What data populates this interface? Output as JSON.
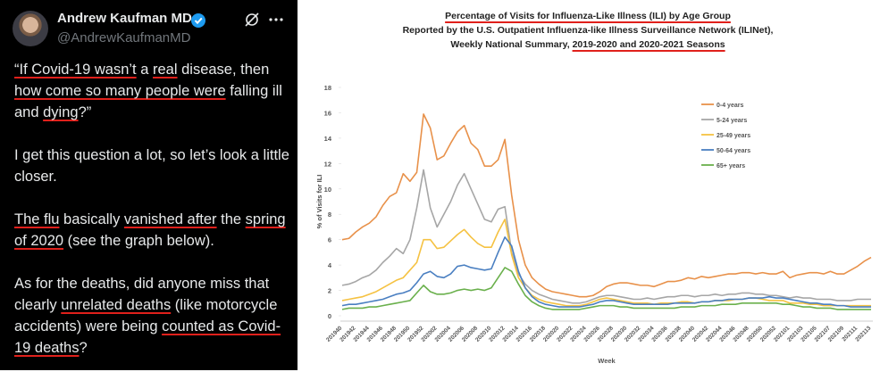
{
  "tweet": {
    "name": "Andrew Kaufman MD",
    "handle": "@AndrewKaufmanMD",
    "paragraphs": [
      [
        {
          "text": "“If Covid-19 wasn’t",
          "underline": true
        },
        " a ",
        {
          "text": "real",
          "underline": true
        },
        " disease, then ",
        {
          "text": "how come so many people were",
          "underline": true
        },
        " falling ill and ",
        {
          "text": "dying",
          "underline": true
        },
        "?”"
      ],
      [
        "I get this question a lot, so let’s look a little closer."
      ],
      [
        {
          "text": "The flu",
          "underline": true
        },
        " basically ",
        {
          "text": "vanished after",
          "underline": true
        },
        " the ",
        {
          "text": "spring of 2020",
          "underline": true
        },
        " (see the graph below)."
      ],
      [
        "As for the deaths, did anyone miss that clearly ",
        {
          "text": "unrelated deaths",
          "underline": true
        },
        " (like motorcycle accidents) were being ",
        {
          "text": "counted as Covid-19 deaths",
          "underline": true
        },
        "?"
      ]
    ]
  },
  "chart_data": {
    "type": "line",
    "title": [
      [
        {
          "text": "Percentage of Visits for Influenza-Like Illness (ILI) by Age Group",
          "underline": true
        }
      ],
      [
        "Reported by the U.S. Outpatient Influenza-like Illness Surveillance Network (ILINet),"
      ],
      [
        "Weekly National Summary, ",
        {
          "text": "2019-2020 and 2020-2021 Seasons",
          "underline": true
        }
      ]
    ],
    "x_label": "Week",
    "y_label": "% of Visits for ILI",
    "ylim": [
      0,
      18
    ],
    "yticks": [
      0,
      2,
      4,
      6,
      8,
      10,
      12,
      14,
      16,
      18
    ],
    "grid": false,
    "legend": "upper right",
    "categories": [
      "201940",
      null,
      "201942",
      null,
      "201944",
      null,
      "201946",
      null,
      "201948",
      null,
      "201950",
      null,
      "201952",
      null,
      "202002",
      null,
      "202004",
      null,
      "202006",
      null,
      "202008",
      null,
      "202010",
      null,
      "202012",
      null,
      "202014",
      null,
      "202016",
      null,
      "202018",
      null,
      "202020",
      null,
      "202022",
      null,
      "202024",
      null,
      "202026",
      null,
      "202028",
      null,
      "202030",
      null,
      "202032",
      null,
      "202034",
      null,
      "202036",
      null,
      "202038",
      null,
      "202040",
      null,
      "202042",
      null,
      "202044",
      null,
      "202046",
      null,
      "202048",
      null,
      "202050",
      null,
      "202052",
      null,
      "202101",
      null,
      "202103",
      null,
      "202105",
      null,
      "202107",
      null,
      "202109",
      null,
      "202111",
      null,
      "202113"
    ],
    "series": [
      {
        "name": "0-4 years",
        "color": "#e8914a",
        "values": [
          6.0,
          6.1,
          6.6,
          7.0,
          7.3,
          7.8,
          8.7,
          9.4,
          9.7,
          11.2,
          10.6,
          11.3,
          15.9,
          14.8,
          12.3,
          12.6,
          13.6,
          14.5,
          15.0,
          13.6,
          13.1,
          11.8,
          11.8,
          12.3,
          13.9,
          9.5,
          6.0,
          4.0,
          3.0,
          2.5,
          2.1,
          1.9,
          1.8,
          1.7,
          1.6,
          1.5,
          1.5,
          1.6,
          1.9,
          2.3,
          2.5,
          2.6,
          2.6,
          2.5,
          2.4,
          2.4,
          2.3,
          2.5,
          2.7,
          2.7,
          2.8,
          3.0,
          2.9,
          3.1,
          3.0,
          3.1,
          3.2,
          3.3,
          3.3,
          3.4,
          3.4,
          3.3,
          3.4,
          3.3,
          3.3,
          3.5,
          3.0,
          3.2,
          3.3,
          3.4,
          3.4,
          3.3,
          3.5,
          3.3,
          3.3,
          3.6,
          3.9,
          4.3,
          4.6
        ]
      },
      {
        "name": "5-24 years",
        "color": "#a6a6a6",
        "values": [
          2.4,
          2.5,
          2.7,
          3.0,
          3.2,
          3.6,
          4.2,
          4.7,
          5.3,
          4.9,
          6.0,
          8.5,
          11.5,
          8.5,
          7.0,
          8.0,
          9.0,
          10.3,
          11.2,
          10.0,
          8.8,
          7.6,
          7.4,
          8.4,
          8.6,
          5.0,
          3.3,
          2.5,
          2.0,
          1.7,
          1.5,
          1.3,
          1.2,
          1.1,
          1.0,
          1.0,
          1.1,
          1.3,
          1.5,
          1.6,
          1.6,
          1.5,
          1.4,
          1.3,
          1.3,
          1.4,
          1.3,
          1.4,
          1.5,
          1.5,
          1.6,
          1.6,
          1.5,
          1.6,
          1.6,
          1.7,
          1.6,
          1.7,
          1.7,
          1.8,
          1.8,
          1.7,
          1.7,
          1.6,
          1.6,
          1.5,
          1.4,
          1.5,
          1.4,
          1.4,
          1.3,
          1.3,
          1.3,
          1.2,
          1.2,
          1.2,
          1.3,
          1.3,
          1.3
        ]
      },
      {
        "name": "25-49 years",
        "color": "#f5c242",
        "values": [
          1.2,
          1.3,
          1.4,
          1.5,
          1.7,
          1.9,
          2.2,
          2.5,
          2.8,
          3.0,
          3.6,
          4.2,
          6.0,
          6.0,
          5.3,
          5.4,
          5.9,
          6.4,
          6.8,
          6.2,
          5.7,
          5.4,
          5.4,
          6.6,
          7.6,
          4.8,
          3.0,
          2.2,
          1.6,
          1.3,
          1.1,
          1.0,
          0.9,
          0.8,
          0.8,
          0.8,
          0.9,
          1.1,
          1.3,
          1.4,
          1.3,
          1.2,
          1.1,
          1.0,
          1.0,
          1.0,
          0.9,
          1.0,
          1.0,
          1.0,
          1.1,
          1.1,
          1.0,
          1.1,
          1.1,
          1.2,
          1.2,
          1.2,
          1.3,
          1.3,
          1.4,
          1.4,
          1.3,
          1.2,
          1.2,
          1.2,
          1.0,
          1.0,
          1.0,
          0.9,
          0.9,
          0.8,
          0.8,
          0.8,
          0.8,
          0.8,
          0.8,
          0.8,
          0.8
        ]
      },
      {
        "name": "50-64 years",
        "color": "#4a7fc1",
        "values": [
          0.8,
          0.9,
          0.9,
          1.0,
          1.1,
          1.2,
          1.3,
          1.5,
          1.7,
          1.8,
          2.0,
          2.6,
          3.3,
          3.5,
          3.1,
          3.0,
          3.3,
          3.9,
          4.0,
          3.8,
          3.7,
          3.6,
          3.7,
          5.0,
          6.2,
          5.5,
          3.5,
          2.2,
          1.5,
          1.1,
          0.9,
          0.8,
          0.7,
          0.7,
          0.7,
          0.7,
          0.8,
          0.9,
          1.1,
          1.2,
          1.2,
          1.1,
          1.0,
          0.9,
          0.9,
          0.9,
          0.9,
          0.9,
          0.9,
          1.0,
          1.0,
          1.0,
          1.0,
          1.1,
          1.1,
          1.2,
          1.2,
          1.3,
          1.3,
          1.3,
          1.4,
          1.4,
          1.4,
          1.5,
          1.4,
          1.4,
          1.3,
          1.2,
          1.1,
          1.0,
          1.0,
          0.9,
          0.9,
          0.8,
          0.8,
          0.7,
          0.7,
          0.7,
          0.7
        ]
      },
      {
        "name": "65+ years",
        "color": "#6ab04c",
        "values": [
          0.5,
          0.6,
          0.6,
          0.6,
          0.7,
          0.7,
          0.8,
          0.9,
          1.0,
          1.1,
          1.2,
          1.8,
          2.4,
          1.9,
          1.7,
          1.7,
          1.8,
          2.0,
          2.1,
          2.0,
          2.1,
          2.0,
          2.2,
          3.0,
          3.8,
          3.5,
          2.5,
          1.6,
          1.1,
          0.8,
          0.6,
          0.5,
          0.5,
          0.5,
          0.5,
          0.5,
          0.6,
          0.7,
          0.8,
          0.8,
          0.8,
          0.7,
          0.7,
          0.6,
          0.6,
          0.6,
          0.6,
          0.6,
          0.6,
          0.6,
          0.7,
          0.7,
          0.7,
          0.8,
          0.8,
          0.8,
          0.9,
          0.9,
          0.9,
          1.0,
          1.0,
          1.0,
          1.0,
          1.0,
          1.0,
          0.9,
          0.9,
          0.8,
          0.7,
          0.7,
          0.6,
          0.6,
          0.6,
          0.5,
          0.5,
          0.5,
          0.5,
          0.5,
          0.5
        ]
      }
    ]
  }
}
